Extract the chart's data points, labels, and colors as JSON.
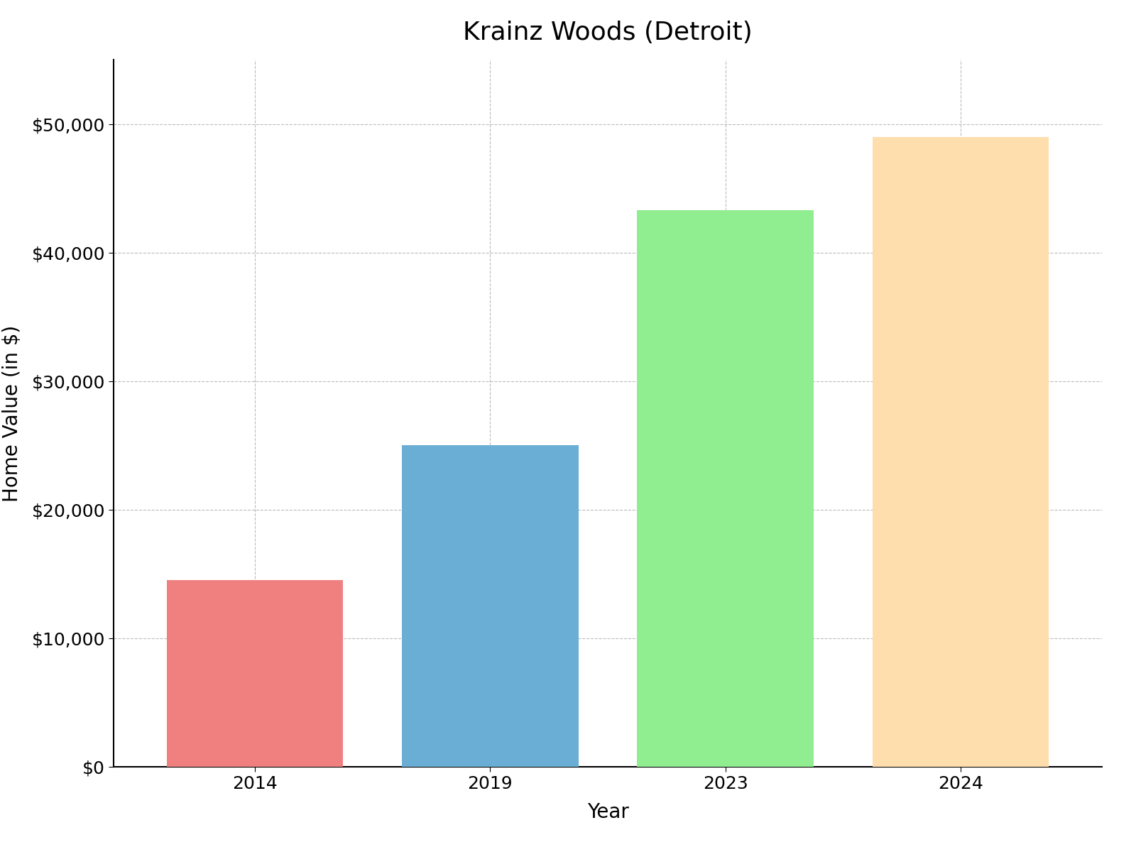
{
  "title": "Krainz Woods (Detroit)",
  "categories": [
    "2014",
    "2019",
    "2023",
    "2024"
  ],
  "values": [
    14500,
    25000,
    43300,
    49000
  ],
  "bar_colors": [
    "#F08080",
    "#6aaed6",
    "#90EE90",
    "#FFDEAD"
  ],
  "xlabel": "Year",
  "ylabel": "Home Value (in $)",
  "ylim": [
    0,
    55000
  ],
  "yticks": [
    0,
    10000,
    20000,
    30000,
    40000,
    50000
  ],
  "title_fontsize": 26,
  "axis_label_fontsize": 20,
  "tick_fontsize": 18,
  "background_color": "#ffffff",
  "grid_color": "#aaaaaa",
  "bar_width": 0.75
}
